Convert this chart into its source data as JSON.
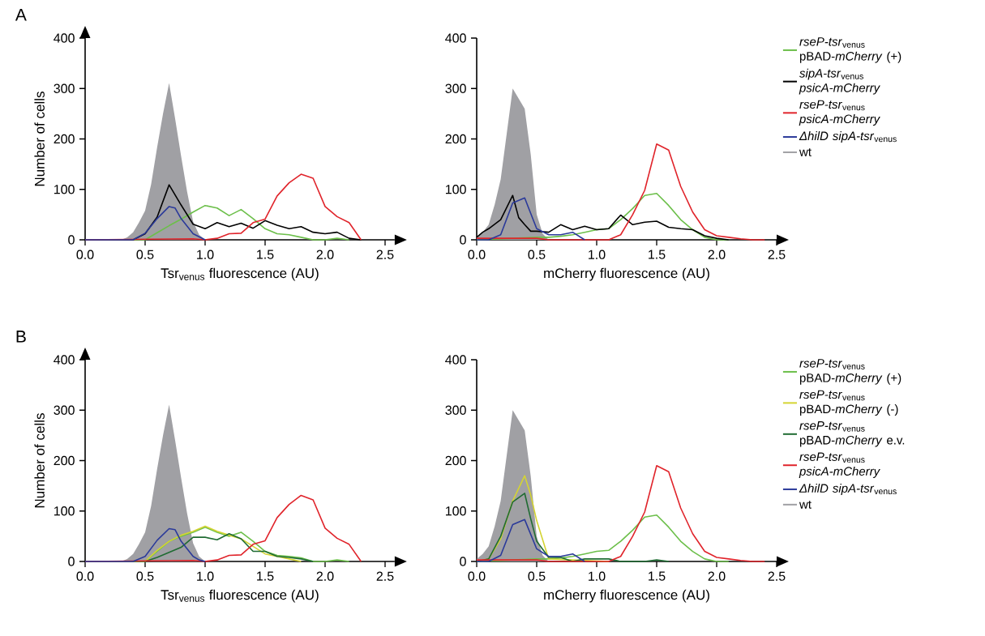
{
  "chart_data": [
    {
      "type": "line",
      "title": "A",
      "xlabel": "Tsr$_{venus}$ fluorescence (AU)",
      "ylabel": "Number of cells",
      "xlim": [
        0,
        2.58
      ],
      "ylim": [
        0,
        400
      ],
      "xticks": [
        {
          "value": 0,
          "label": "0.0"
        },
        {
          "value": 0.5,
          "label": "0.5"
        },
        {
          "value": 1,
          "label": "1.0"
        },
        {
          "value": 1.5,
          "label": "1.5"
        },
        {
          "value": 2,
          "label": "2.0"
        },
        {
          "value": 2.5,
          "label": "2.5"
        }
      ],
      "yticks": [
        0,
        100,
        200,
        300,
        400
      ],
      "series": [
        {
          "color": "#6cbf4a",
          "x": [
            0,
            0.5,
            0.6,
            0.7,
            0.8,
            0.9,
            1.0,
            1.1,
            1.2,
            1.3,
            1.4,
            1.5,
            1.6,
            1.7,
            1.8,
            1.9,
            2.0,
            2.1,
            2.2
          ],
          "values": [
            0,
            0,
            14,
            28,
            41,
            55,
            68,
            63,
            48,
            60,
            42,
            22,
            12,
            10,
            5,
            0,
            0,
            3,
            0
          ]
        },
        {
          "color": "#000000",
          "x": [
            0,
            0.4,
            0.5,
            0.6,
            0.7,
            0.8,
            0.9,
            1.0,
            1.1,
            1.2,
            1.3,
            1.4,
            1.5,
            1.6,
            1.7,
            1.8,
            1.9,
            2.0,
            2.1,
            2.2,
            2.3
          ],
          "values": [
            0,
            0,
            12,
            45,
            109,
            69,
            31,
            22,
            34,
            26,
            33,
            23,
            38,
            29,
            22,
            26,
            15,
            12,
            15,
            3,
            0
          ]
        },
        {
          "color": "#e0242b",
          "x": [
            0,
            0.9,
            1.0,
            1.1,
            1.2,
            1.3,
            1.4,
            1.5,
            1.6,
            1.7,
            1.8,
            1.9,
            2.0,
            2.1,
            2.2,
            2.3
          ],
          "values": [
            0,
            2,
            0,
            3,
            12,
            13,
            34,
            41,
            87,
            113,
            130,
            122,
            66,
            46,
            34,
            0
          ]
        },
        {
          "color": "#2b3a9a",
          "x": [
            0,
            0.4,
            0.5,
            0.6,
            0.7,
            0.75,
            0.8,
            0.9,
            1.0
          ],
          "values": [
            0,
            0,
            13,
            42,
            66,
            63,
            42,
            12,
            0
          ]
        },
        {
          "type": "area",
          "color": "#a0a0a4",
          "x": [
            0.3,
            0.35,
            0.4,
            0.45,
            0.5,
            0.55,
            0.6,
            0.65,
            0.7,
            0.75,
            0.8,
            0.85,
            0.9,
            0.95,
            1.0
          ],
          "values": [
            0,
            5,
            15,
            35,
            58,
            110,
            183,
            251,
            311,
            240,
            166,
            95,
            36,
            10,
            0
          ]
        }
      ]
    },
    {
      "type": "line",
      "xlabel": "mCherry fluorescence (AU)",
      "legend": "right",
      "xlim": [
        0,
        2.5
      ],
      "ylim": [
        0,
        400
      ],
      "xticks": [
        {
          "value": 0,
          "label": "0.0"
        },
        {
          "value": 0.5,
          "label": "0.5"
        },
        {
          "value": 1,
          "label": "1.0"
        },
        {
          "value": 1.5,
          "label": "1.5"
        },
        {
          "value": 2,
          "label": "2.0"
        },
        {
          "value": 2.5,
          "label": "2.5"
        }
      ],
      "yticks": [
        0,
        100,
        200,
        300,
        400
      ],
      "series": [
        {
          "name": "*rseP-tsr*$_{venus}$ pBAD-*mCherry* (+)",
          "color": "#6cbf4a",
          "x": [
            0,
            0.5,
            0.6,
            0.7,
            0.8,
            0.9,
            1.0,
            1.1,
            1.2,
            1.3,
            1.4,
            1.5,
            1.6,
            1.7,
            1.8,
            1.9,
            2.0,
            2.1
          ],
          "values": [
            0,
            5,
            5,
            7,
            10,
            15,
            20,
            22,
            40,
            62,
            88,
            92,
            68,
            40,
            20,
            5,
            0,
            0
          ]
        },
        {
          "name": "*sipA-tsr*$_{venus}$ *psicA-mCherry*",
          "color": "#000000",
          "x": [
            0,
            0.05,
            0.1,
            0.2,
            0.3,
            0.35,
            0.4,
            0.45,
            0.5,
            0.6,
            0.7,
            0.8,
            0.9,
            1.0,
            1.1,
            1.2,
            1.3,
            1.4,
            1.5,
            1.6,
            1.7,
            1.8,
            1.9,
            2.0,
            2.1
          ],
          "values": [
            5,
            15,
            22,
            40,
            88,
            44,
            30,
            17,
            17,
            15,
            30,
            20,
            27,
            20,
            22,
            49,
            30,
            35,
            37,
            25,
            22,
            20,
            8,
            3,
            0
          ]
        },
        {
          "name": "*rseP-tsr*$_{venus}$ *psicA-mCherry*",
          "color": "#e0242b",
          "x": [
            0,
            0.5,
            0.6,
            1.1,
            1.2,
            1.3,
            1.4,
            1.5,
            1.6,
            1.7,
            1.8,
            1.9,
            2.0,
            2.1,
            2.2,
            2.3,
            2.4
          ],
          "values": [
            3,
            3,
            0,
            0,
            10,
            50,
            98,
            190,
            178,
            106,
            55,
            20,
            8,
            5,
            2,
            0,
            0
          ]
        },
        {
          "name": "*ΔhilD sipA-tsr*$_{venus}$",
          "color": "#2b3a9a",
          "x": [
            0,
            0.1,
            0.2,
            0.3,
            0.4,
            0.5,
            0.6,
            0.7,
            0.8,
            0.9
          ],
          "values": [
            0,
            0,
            10,
            73,
            83,
            22,
            10,
            10,
            15,
            0
          ]
        },
        {
          "name": "wt",
          "type": "area",
          "color": "#a0a0a4",
          "x": [
            0,
            0.05,
            0.1,
            0.15,
            0.2,
            0.25,
            0.3,
            0.35,
            0.4,
            0.45,
            0.5,
            0.55,
            0.6
          ],
          "values": [
            5,
            15,
            30,
            70,
            120,
            210,
            300,
            280,
            260,
            170,
            50,
            12,
            0
          ]
        }
      ]
    },
    {
      "type": "line",
      "title": "B",
      "xlabel": "Tsr$_{venus}$ fluorescence (AU)",
      "ylabel": "Number of cells",
      "xlim": [
        0,
        2.58
      ],
      "ylim": [
        0,
        400
      ],
      "xticks": [
        {
          "value": 0,
          "label": "0.0"
        },
        {
          "value": 0.5,
          "label": "0.5"
        },
        {
          "value": 1,
          "label": "1.0"
        },
        {
          "value": 1.5,
          "label": "1.5"
        },
        {
          "value": 2,
          "label": "2.0"
        },
        {
          "value": 2.5,
          "label": "2.5"
        }
      ],
      "yticks": [
        0,
        100,
        200,
        300,
        400
      ],
      "series": [
        {
          "color": "#6cbf4a",
          "x": [
            0,
            0.5,
            0.6,
            0.7,
            0.8,
            0.9,
            1.0,
            1.1,
            1.2,
            1.3,
            1.4,
            1.5,
            1.6,
            1.7,
            1.8,
            1.9,
            2.0,
            2.1,
            2.2
          ],
          "values": [
            0,
            0,
            20,
            40,
            50,
            58,
            68,
            58,
            50,
            58,
            40,
            20,
            12,
            10,
            7,
            0,
            0,
            3,
            0
          ]
        },
        {
          "color": "#d4d433",
          "x": [
            0,
            0.5,
            0.6,
            0.7,
            0.8,
            0.9,
            1.0,
            1.1,
            1.2,
            1.3,
            1.4,
            1.5,
            1.6,
            1.7,
            1.8
          ],
          "values": [
            0,
            0,
            22,
            40,
            52,
            60,
            70,
            60,
            52,
            45,
            30,
            15,
            10,
            5,
            0
          ]
        },
        {
          "color": "#1f6b32",
          "x": [
            0,
            0.5,
            0.6,
            0.7,
            0.8,
            0.9,
            1.0,
            1.1,
            1.2,
            1.3,
            1.4,
            1.5,
            1.6,
            1.7,
            1.8,
            1.9
          ],
          "values": [
            0,
            0,
            8,
            18,
            28,
            48,
            48,
            43,
            55,
            45,
            20,
            20,
            10,
            8,
            5,
            0
          ]
        },
        {
          "color": "#e0242b",
          "x": [
            0,
            0.9,
            1.0,
            1.1,
            1.2,
            1.3,
            1.4,
            1.5,
            1.6,
            1.7,
            1.8,
            1.9,
            2.0,
            2.1,
            2.2,
            2.3
          ],
          "values": [
            0,
            2,
            0,
            3,
            12,
            13,
            34,
            41,
            87,
            113,
            131,
            122,
            66,
            46,
            34,
            0
          ]
        },
        {
          "color": "#2b3a9a",
          "x": [
            0,
            0.4,
            0.5,
            0.6,
            0.7,
            0.75,
            0.8,
            0.9,
            0.95,
            1.0
          ],
          "values": [
            0,
            0,
            10,
            42,
            65,
            63,
            40,
            10,
            3,
            0
          ]
        },
        {
          "type": "area",
          "color": "#a0a0a4",
          "x": [
            0.3,
            0.35,
            0.4,
            0.45,
            0.5,
            0.55,
            0.6,
            0.65,
            0.7,
            0.75,
            0.8,
            0.85,
            0.9,
            0.95,
            1.0
          ],
          "values": [
            0,
            5,
            15,
            35,
            58,
            110,
            183,
            251,
            311,
            240,
            166,
            95,
            36,
            10,
            0
          ]
        }
      ]
    },
    {
      "type": "line",
      "xlabel": "mCherry fluorescence (AU)",
      "legend": "right",
      "xlim": [
        0,
        2.5
      ],
      "ylim": [
        0,
        400
      ],
      "xticks": [
        {
          "value": 0,
          "label": "0.0"
        },
        {
          "value": 0.5,
          "label": "0.5"
        },
        {
          "value": 1,
          "label": "1.0"
        },
        {
          "value": 1.5,
          "label": "1.5"
        },
        {
          "value": 2,
          "label": "2.0"
        },
        {
          "value": 2.5,
          "label": "2.5"
        }
      ],
      "yticks": [
        0,
        100,
        200,
        300,
        400
      ],
      "series": [
        {
          "name": "*rseP-tsr*$_{venus}$ pBAD-*mCherry* (+)",
          "color": "#6cbf4a",
          "x": [
            0,
            0.5,
            0.6,
            0.7,
            0.8,
            0.9,
            1.0,
            1.1,
            1.2,
            1.3,
            1.4,
            1.5,
            1.6,
            1.7,
            1.8,
            1.9,
            2.0,
            2.1
          ],
          "values": [
            0,
            5,
            5,
            7,
            10,
            15,
            20,
            22,
            40,
            62,
            88,
            92,
            68,
            40,
            20,
            5,
            0,
            0
          ]
        },
        {
          "name": "*rseP-tsr*$_{venus}$ pBAD-*mCherry* (-)",
          "color": "#d4d433",
          "x": [
            0,
            0.1,
            0.2,
            0.3,
            0.4,
            0.45,
            0.5,
            0.55,
            0.6,
            1.0,
            1.1
          ],
          "values": [
            0,
            5,
            45,
            120,
            170,
            132,
            81,
            43,
            5,
            null,
            0
          ]
        },
        {
          "name": "*rseP-tsr*$_{venus}$ pBAD-*mCherry* e.v.",
          "color": "#1f6b32",
          "x": [
            0,
            0.1,
            0.2,
            0.3,
            0.4,
            0.45,
            0.5,
            0.6,
            0.7,
            0.8,
            0.9,
            1.0,
            1.1,
            1.2,
            1.4,
            1.5,
            1.6
          ],
          "values": [
            0,
            5,
            50,
            118,
            135,
            85,
            40,
            8,
            8,
            0,
            5,
            5,
            5,
            0,
            0,
            3,
            0
          ]
        },
        {
          "name": "*rseP-tsr*$_{venus}$ *psicA-mCherry*",
          "color": "#e0242b",
          "x": [
            0,
            0.5,
            0.6,
            1.1,
            1.2,
            1.3,
            1.4,
            1.5,
            1.6,
            1.7,
            1.8,
            1.9,
            2.0,
            2.1,
            2.2,
            2.3,
            2.4
          ],
          "values": [
            3,
            3,
            0,
            0,
            10,
            50,
            98,
            190,
            178,
            106,
            55,
            20,
            8,
            5,
            2,
            0,
            0
          ]
        },
        {
          "name": "*ΔhilD sipA-tsr*$_{venus}$",
          "color": "#2b3a9a",
          "x": [
            0,
            0.1,
            0.2,
            0.3,
            0.4,
            0.5,
            0.6,
            0.7,
            0.8,
            0.9
          ],
          "values": [
            0,
            0,
            12,
            73,
            83,
            25,
            10,
            10,
            15,
            0
          ]
        },
        {
          "name": "wt",
          "type": "area",
          "color": "#a0a0a4",
          "x": [
            0,
            0.05,
            0.1,
            0.15,
            0.2,
            0.25,
            0.3,
            0.35,
            0.4,
            0.45,
            0.5,
            0.55,
            0.6
          ],
          "values": [
            5,
            15,
            30,
            70,
            120,
            210,
            300,
            280,
            260,
            170,
            50,
            12,
            0
          ]
        }
      ]
    }
  ]
}
